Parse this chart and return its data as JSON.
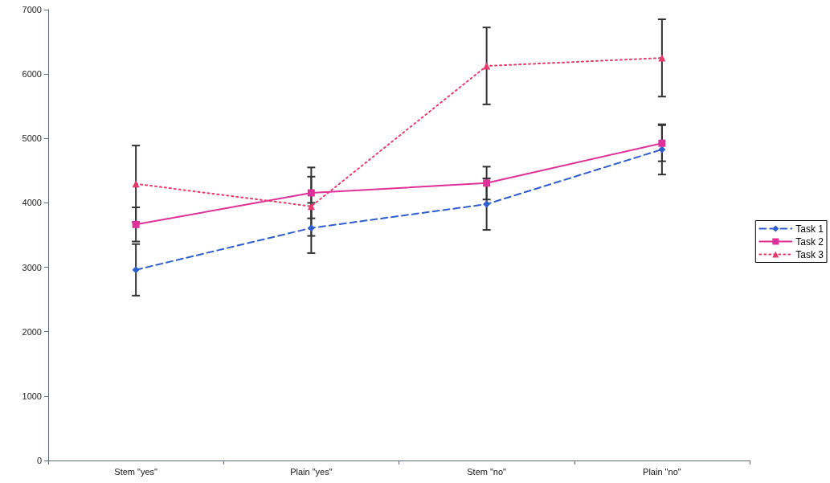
{
  "chart_data": {
    "type": "line",
    "categories": [
      "Stem \"yes\"",
      "Plain \"yes\"",
      "Stem \"no\"",
      "Plain \"no\""
    ],
    "series": [
      {
        "name": "Task 1",
        "color": "#2f5fcf",
        "marker": "diamond",
        "line_style": "dashed",
        "values": [
          2960,
          3610,
          3980,
          4830
        ],
        "errors": [
          400,
          390,
          400,
          390
        ]
      },
      {
        "name": "Task 2",
        "color": "#e0309a",
        "marker": "square",
        "line_style": "solid",
        "values": [
          3665,
          4155,
          4307,
          4926
        ],
        "errors": [
          265,
          395,
          255,
          280
        ]
      },
      {
        "name": "Task 3",
        "color": "#e83a6a",
        "marker": "triangle",
        "line_style": "dotted",
        "values": [
          4295,
          3947,
          6126,
          6250
        ],
        "errors": [
          595,
          460,
          597,
          600
        ]
      }
    ],
    "ylim": [
      0,
      7000
    ],
    "yticks": [
      0,
      1000,
      2000,
      3000,
      4000,
      5000,
      6000,
      7000
    ],
    "grid": false,
    "legend": "right"
  }
}
